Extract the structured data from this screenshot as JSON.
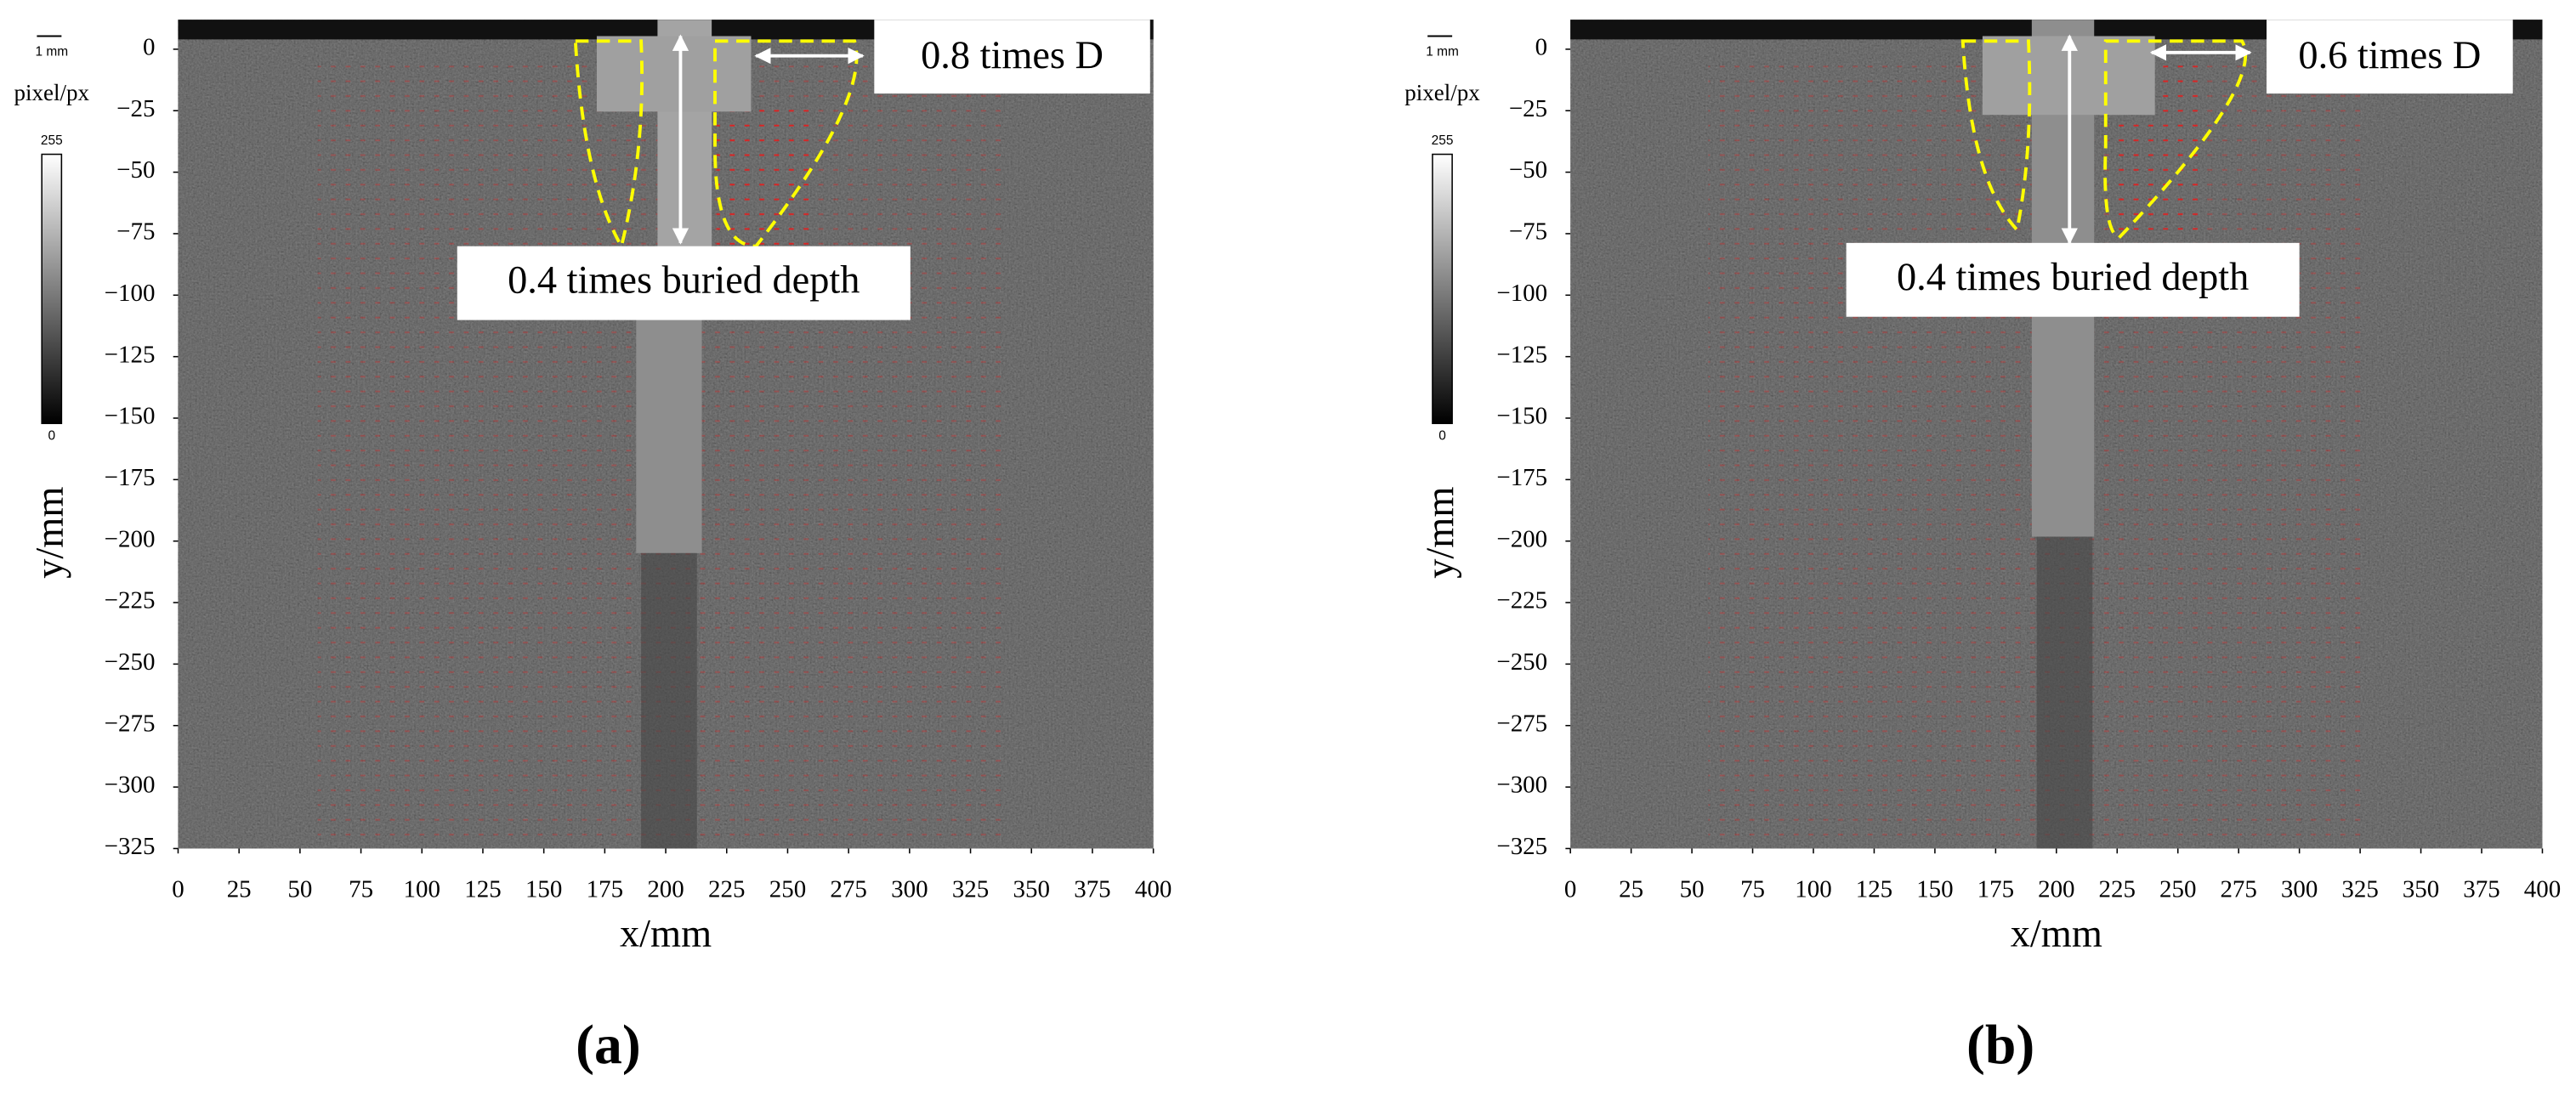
{
  "chart_data": [
    {
      "type": "image",
      "panel_label": "(a)",
      "xlabel": "x/mm",
      "ylabel": "y/mm",
      "xlim": [
        0,
        400
      ],
      "ylim": [
        -325,
        12
      ],
      "xticks": [
        0,
        25,
        50,
        75,
        100,
        125,
        150,
        175,
        200,
        225,
        250,
        275,
        300,
        325,
        350,
        375,
        400
      ],
      "yticks": [
        0,
        {
          "value": -25,
          "label": "−25"
        },
        {
          "value": -50,
          "label": "−50"
        },
        {
          "value": -75,
          "label": "−75"
        },
        {
          "value": -100,
          "label": "−100"
        },
        {
          "value": -125,
          "label": "−125"
        },
        {
          "value": -150,
          "label": "−150"
        },
        {
          "value": -175,
          "label": "−175"
        },
        {
          "value": -200,
          "label": "−200"
        },
        {
          "value": -225,
          "label": "−225"
        },
        {
          "value": -250,
          "label": "−250"
        },
        {
          "value": -275,
          "label": "−275"
        },
        {
          "value": -300,
          "label": "−300"
        },
        {
          "value": -325,
          "label": "−325"
        }
      ],
      "annotations": [
        "0.8 times D",
        "0.4 times buried depth"
      ],
      "colorbar": {
        "label": "pixel/px",
        "max": 255,
        "min": 0
      },
      "scale_label": "1 mm"
    },
    {
      "type": "image",
      "panel_label": "(b)",
      "xlabel": "x/mm",
      "ylabel": "y/mm",
      "xlim": [
        0,
        400
      ],
      "ylim": [
        -325,
        12
      ],
      "xticks": [
        0,
        25,
        50,
        75,
        100,
        125,
        150,
        175,
        200,
        225,
        250,
        275,
        300,
        325,
        350,
        375,
        400
      ],
      "yticks": [
        0,
        {
          "value": -25,
          "label": "−25"
        },
        {
          "value": -50,
          "label": "−50"
        },
        {
          "value": -75,
          "label": "−75"
        },
        {
          "value": -100,
          "label": "−100"
        },
        {
          "value": -125,
          "label": "−125"
        },
        {
          "value": -150,
          "label": "−150"
        },
        {
          "value": -175,
          "label": "−175"
        },
        {
          "value": -200,
          "label": "−200"
        },
        {
          "value": -225,
          "label": "−225"
        },
        {
          "value": -250,
          "label": "−250"
        },
        {
          "value": -275,
          "label": "−275"
        },
        {
          "value": -300,
          "label": "−300"
        },
        {
          "value": -325,
          "label": "−325"
        }
      ],
      "annotations": [
        "0.6 times D",
        "0.4 times buried depth"
      ],
      "colorbar": {
        "label": "pixel/px",
        "max": 255,
        "min": 0
      },
      "scale_label": "1 mm"
    }
  ]
}
